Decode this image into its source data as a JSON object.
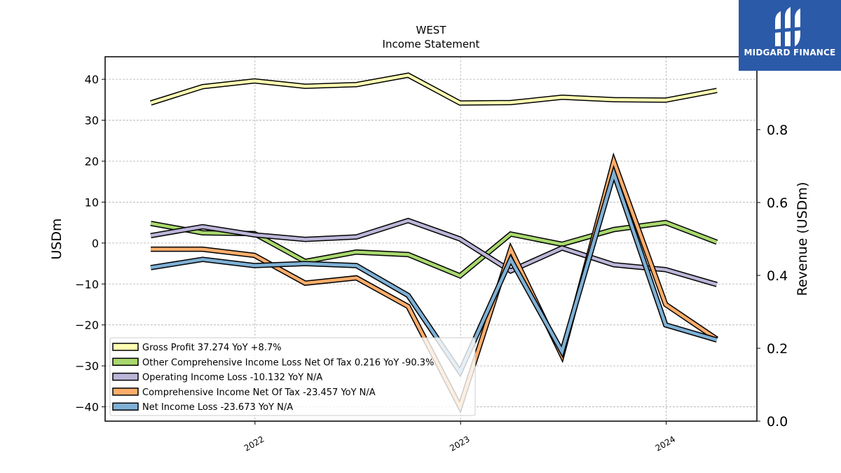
{
  "chart_data": {
    "type": "line",
    "title": "WEST",
    "subtitle": "Income Statement",
    "ylabel": "USDm",
    "y2label": "Revenue (USDm)",
    "ylim": [
      -43.5,
      45.5
    ],
    "y2lim": [
      0.0,
      1.0
    ],
    "yticks": [
      40,
      30,
      20,
      10,
      0,
      -10,
      -20,
      -30,
      -40
    ],
    "ytick_labels": [
      "40",
      "30",
      "20",
      "10",
      "0",
      "−10",
      "−20",
      "−30",
      "−40"
    ],
    "y2ticks": [
      0.0,
      0.2,
      0.4,
      0.6,
      0.8
    ],
    "y2tick_labels": [
      "0.0",
      "0.2",
      "0.4",
      "0.6",
      "0.8"
    ],
    "xlim": [
      "2021-04-10",
      "2024-06-10"
    ],
    "xticks": [
      "2022-01-01",
      "2023-01-01",
      "2024-01-01"
    ],
    "xtick_labels": [
      "2022",
      "2023",
      "2024"
    ],
    "grid": true,
    "legend_position": "lower-left",
    "x": [
      "2021-06-30",
      "2021-09-30",
      "2021-12-31",
      "2022-03-31",
      "2022-06-30",
      "2022-09-30",
      "2022-12-31",
      "2023-03-31",
      "2023-06-30",
      "2023-09-30",
      "2023-12-31",
      "2024-03-31"
    ],
    "series": [
      {
        "name": "Gross Profit",
        "legend": "Gross Profit  37.274 YoY +8.7%",
        "color": "#ffffb3",
        "values": [
          34.2,
          38.2,
          39.6,
          38.3,
          38.7,
          41.0,
          34.2,
          34.3,
          35.6,
          35.0,
          34.9,
          37.274
        ]
      },
      {
        "name": "Other Comprehensive Income Loss Net Of Tax",
        "legend": "Other Comprehensive Income Loss Net Of Tax  0.216 YoY -90.3%",
        "color": "#a8d86e",
        "values": [
          4.8,
          2.5,
          2.3,
          -4.5,
          -2.2,
          -2.8,
          -8.0,
          2.2,
          -0.3,
          3.3,
          5.0,
          0.216
        ]
      },
      {
        "name": "Operating Income Loss",
        "legend": "Operating Income Loss  -10.132 YoY N/A",
        "color": "#bcb5d8",
        "values": [
          1.8,
          4.0,
          2.0,
          0.9,
          1.5,
          5.5,
          1.0,
          -6.8,
          -1.2,
          -5.3,
          -6.5,
          -10.132
        ]
      },
      {
        "name": "Comprehensive Income Net Of Tax",
        "legend": "Comprehensive Income Net Of Tax  -23.457 YoY N/A",
        "color": "#fdad6b",
        "values": [
          -1.5,
          -1.5,
          -3.0,
          -9.8,
          -8.5,
          -15.5,
          -40.0,
          -1.5,
          -27.5,
          20.0,
          -15.0,
          -23.457
        ]
      },
      {
        "name": "Net Income Loss",
        "legend": "Net Income Loss  -23.673 YoY N/A",
        "color": "#7eb0d5",
        "values": [
          -6.0,
          -4.0,
          -5.5,
          -5.0,
          -5.5,
          -12.8,
          -31.5,
          -4.0,
          -26.5,
          17.0,
          -20.0,
          -23.673
        ]
      }
    ]
  },
  "logo": {
    "text": "MIDGARD FINANCE"
  }
}
